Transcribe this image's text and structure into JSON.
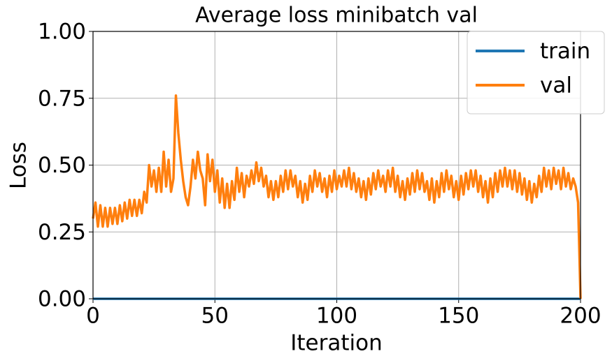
{
  "chart_data": {
    "type": "line",
    "title": "Average loss minibatch val",
    "xlabel": "Iteration",
    "ylabel": "Loss",
    "x": [
      0,
      1,
      2,
      3,
      4,
      5,
      6,
      7,
      8,
      9,
      10,
      11,
      12,
      13,
      14,
      15,
      16,
      17,
      18,
      19,
      20,
      21,
      22,
      23,
      24,
      25,
      26,
      27,
      28,
      29,
      30,
      31,
      32,
      33,
      34,
      35,
      36,
      37,
      38,
      39,
      40,
      41,
      42,
      43,
      44,
      45,
      46,
      47,
      48,
      49,
      50,
      51,
      52,
      53,
      54,
      55,
      56,
      57,
      58,
      59,
      60,
      61,
      62,
      63,
      64,
      65,
      66,
      67,
      68,
      69,
      70,
      71,
      72,
      73,
      74,
      75,
      76,
      77,
      78,
      79,
      80,
      81,
      82,
      83,
      84,
      85,
      86,
      87,
      88,
      89,
      90,
      91,
      92,
      93,
      94,
      95,
      96,
      97,
      98,
      99,
      100,
      101,
      102,
      103,
      104,
      105,
      106,
      107,
      108,
      109,
      110,
      111,
      112,
      113,
      114,
      115,
      116,
      117,
      118,
      119,
      120,
      121,
      122,
      123,
      124,
      125,
      126,
      127,
      128,
      129,
      130,
      131,
      132,
      133,
      134,
      135,
      136,
      137,
      138,
      139,
      140,
      141,
      142,
      143,
      144,
      145,
      146,
      147,
      148,
      149,
      150,
      151,
      152,
      153,
      154,
      155,
      156,
      157,
      158,
      159,
      160,
      161,
      162,
      163,
      164,
      165,
      166,
      167,
      168,
      169,
      170,
      171,
      172,
      173,
      174,
      175,
      176,
      177,
      178,
      179,
      180,
      181,
      182,
      183,
      184,
      185,
      186,
      187,
      188,
      189,
      190,
      191,
      192,
      193,
      194,
      195,
      196,
      197,
      198,
      199,
      200
    ],
    "series": [
      {
        "name": "train",
        "color": "#1f77b4",
        "values": [
          0,
          0,
          0,
          0,
          0,
          0,
          0,
          0,
          0,
          0,
          0,
          0,
          0,
          0,
          0,
          0,
          0,
          0,
          0,
          0,
          0,
          0,
          0,
          0,
          0,
          0,
          0,
          0,
          0,
          0,
          0,
          0,
          0,
          0,
          0,
          0,
          0,
          0,
          0,
          0,
          0,
          0,
          0,
          0,
          0,
          0,
          0,
          0,
          0,
          0,
          0,
          0,
          0,
          0,
          0,
          0,
          0,
          0,
          0,
          0,
          0,
          0,
          0,
          0,
          0,
          0,
          0,
          0,
          0,
          0,
          0,
          0,
          0,
          0,
          0,
          0,
          0,
          0,
          0,
          0,
          0,
          0,
          0,
          0,
          0,
          0,
          0,
          0,
          0,
          0,
          0,
          0,
          0,
          0,
          0,
          0,
          0,
          0,
          0,
          0,
          0,
          0,
          0,
          0,
          0,
          0,
          0,
          0,
          0,
          0,
          0,
          0,
          0,
          0,
          0,
          0,
          0,
          0,
          0,
          0,
          0,
          0,
          0,
          0,
          0,
          0,
          0,
          0,
          0,
          0,
          0,
          0,
          0,
          0,
          0,
          0,
          0,
          0,
          0,
          0,
          0,
          0,
          0,
          0,
          0,
          0,
          0,
          0,
          0,
          0,
          0,
          0,
          0,
          0,
          0,
          0,
          0,
          0,
          0,
          0,
          0,
          0,
          0,
          0,
          0,
          0,
          0,
          0,
          0,
          0,
          0,
          0,
          0,
          0,
          0,
          0,
          0,
          0,
          0,
          0,
          0,
          0,
          0,
          0,
          0,
          0,
          0,
          0,
          0,
          0,
          0,
          0,
          0,
          0,
          0,
          0,
          0,
          0,
          0,
          0,
          0
        ]
      },
      {
        "name": "val",
        "color": "#ff7f0e",
        "values": [
          0.3,
          0.36,
          0.27,
          0.35,
          0.27,
          0.34,
          0.27,
          0.34,
          0.28,
          0.34,
          0.28,
          0.35,
          0.29,
          0.36,
          0.3,
          0.37,
          0.31,
          0.37,
          0.31,
          0.37,
          0.32,
          0.4,
          0.36,
          0.5,
          0.42,
          0.48,
          0.4,
          0.49,
          0.4,
          0.55,
          0.42,
          0.52,
          0.4,
          0.45,
          0.76,
          0.62,
          0.52,
          0.44,
          0.38,
          0.35,
          0.42,
          0.52,
          0.45,
          0.55,
          0.48,
          0.45,
          0.35,
          0.54,
          0.44,
          0.52,
          0.4,
          0.48,
          0.36,
          0.45,
          0.34,
          0.43,
          0.34,
          0.44,
          0.37,
          0.49,
          0.4,
          0.47,
          0.38,
          0.46,
          0.42,
          0.48,
          0.43,
          0.51,
          0.44,
          0.49,
          0.42,
          0.46,
          0.38,
          0.44,
          0.37,
          0.44,
          0.38,
          0.46,
          0.4,
          0.48,
          0.41,
          0.48,
          0.42,
          0.46,
          0.38,
          0.44,
          0.36,
          0.43,
          0.37,
          0.46,
          0.4,
          0.48,
          0.42,
          0.47,
          0.4,
          0.45,
          0.38,
          0.46,
          0.4,
          0.48,
          0.41,
          0.46,
          0.42,
          0.48,
          0.42,
          0.49,
          0.41,
          0.47,
          0.4,
          0.45,
          0.38,
          0.44,
          0.37,
          0.45,
          0.39,
          0.47,
          0.41,
          0.48,
          0.42,
          0.46,
          0.4,
          0.48,
          0.42,
          0.49,
          0.4,
          0.46,
          0.38,
          0.44,
          0.37,
          0.45,
          0.39,
          0.47,
          0.4,
          0.48,
          0.41,
          0.47,
          0.4,
          0.44,
          0.37,
          0.45,
          0.36,
          0.44,
          0.38,
          0.47,
          0.4,
          0.48,
          0.41,
          0.46,
          0.38,
          0.44,
          0.37,
          0.46,
          0.39,
          0.47,
          0.41,
          0.48,
          0.42,
          0.48,
          0.4,
          0.46,
          0.38,
          0.44,
          0.36,
          0.45,
          0.38,
          0.47,
          0.4,
          0.48,
          0.42,
          0.49,
          0.42,
          0.48,
          0.41,
          0.48,
          0.4,
          0.47,
          0.39,
          0.45,
          0.37,
          0.44,
          0.36,
          0.43,
          0.38,
          0.46,
          0.4,
          0.49,
          0.42,
          0.48,
          0.41,
          0.49,
          0.43,
          0.48,
          0.41,
          0.49,
          0.42,
          0.47,
          0.41,
          0.45,
          0.42,
          0.36,
          0.0
        ]
      }
    ],
    "xlim": [
      0,
      200
    ],
    "ylim": [
      0,
      1
    ],
    "xticks": [
      0,
      50,
      100,
      150,
      200
    ],
    "yticks": [
      {
        "value": 0,
        "label": "0.00"
      },
      {
        "value": 0.25,
        "label": "0.25"
      },
      {
        "value": 0.5,
        "label": "0.50"
      },
      {
        "value": 0.75,
        "label": "0.75"
      },
      {
        "value": 1,
        "label": "1.00"
      }
    ],
    "grid": true,
    "legend": "upper right"
  }
}
